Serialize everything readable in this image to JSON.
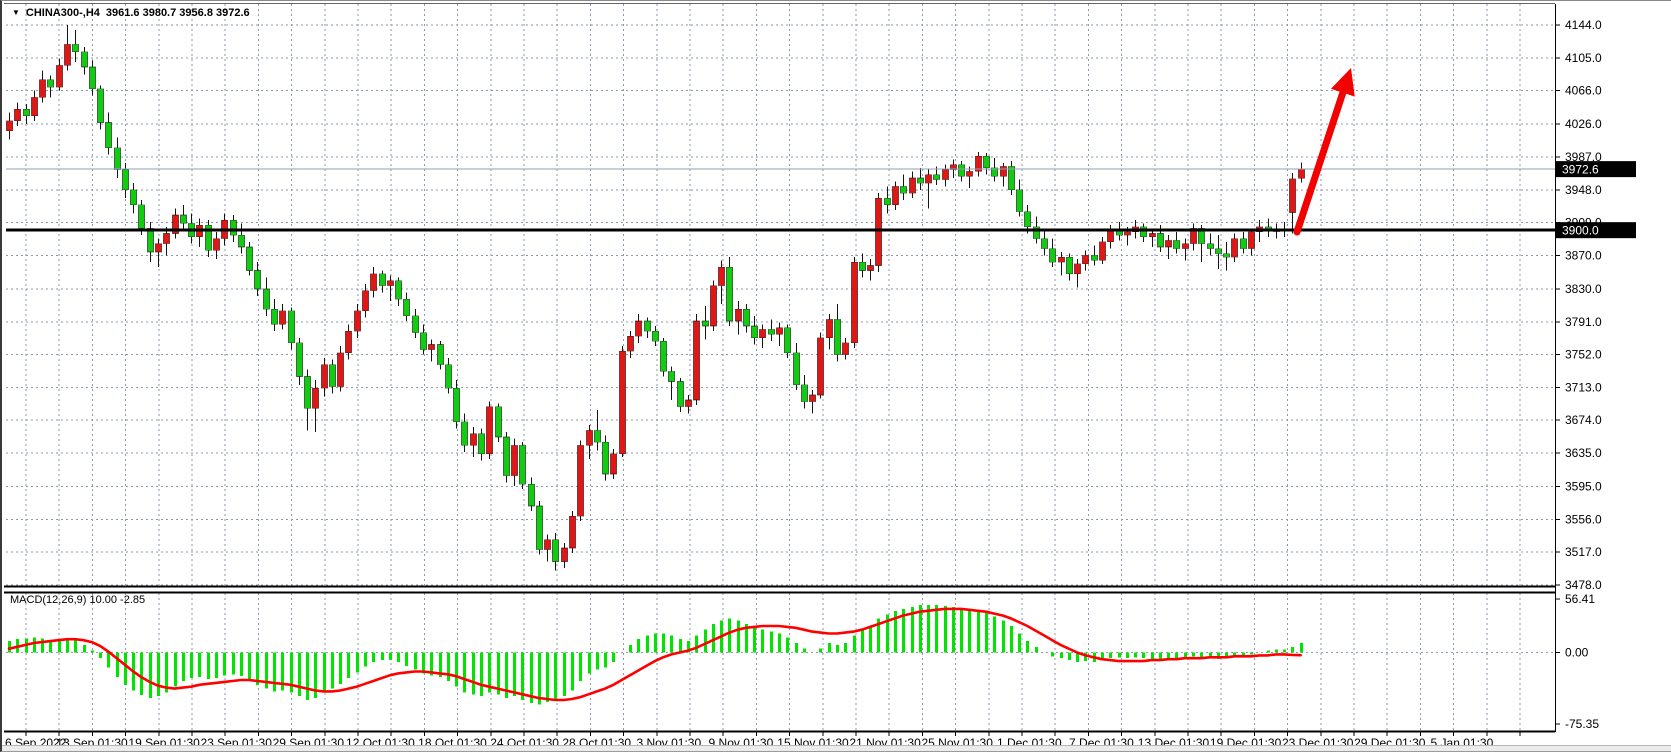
{
  "window": {
    "symbol_period": "CHINA300-,H4",
    "ohlc_display": "3961.6 3980.7 3956.8 3972.6"
  },
  "chart_data": {
    "type": "candlestick",
    "title": "CHINA300-,H4",
    "subtitle_values": {
      "open": "3961.6",
      "high": "3980.7",
      "low": "3956.8",
      "close": "3972.6"
    },
    "legend_position": "top-left",
    "grid": true,
    "price_axis": {
      "max": 4144.0,
      "min": 3478.0,
      "ticks": [
        4144.0,
        4105.0,
        4066.0,
        4026.0,
        3987.0,
        3948.0,
        3909.0,
        3870.0,
        3830.0,
        3791.0,
        3752.0,
        3713.0,
        3674.0,
        3635.0,
        3595.0,
        3556.0,
        3517.0,
        3478.0
      ],
      "current_price": 3972.6,
      "horizontal_line": 3900.0
    },
    "time_axis": {
      "labels": [
        "6 Sep 2022",
        "13 Sep 01:30",
        "19 Sep 01:30",
        "23 Sep 01:30",
        "29 Sep 01:30",
        "12 Oct 01:30",
        "18 Oct 01:30",
        "24 Oct 01:30",
        "28 Oct 01:30",
        "3 Nov 01:30",
        "9 Nov 01:30",
        "15 Nov 01:30",
        "21 Nov 01:30",
        "25 Nov 01:30",
        "1 Dec 01:30",
        "7 Dec 01:30",
        "13 Dec 01:30",
        "19 Dec 01:30",
        "23 Dec 01:30",
        "29 Dec 01:30",
        "5 Jan 01:30"
      ]
    },
    "candles_ohlc": [
      [
        4018,
        4040,
        4008,
        4030
      ],
      [
        4030,
        4052,
        4024,
        4044
      ],
      [
        4044,
        4050,
        4026,
        4036
      ],
      [
        4036,
        4066,
        4030,
        4058
      ],
      [
        4058,
        4090,
        4052,
        4079
      ],
      [
        4079,
        4084,
        4058,
        4070
      ],
      [
        4070,
        4104,
        4066,
        4096
      ],
      [
        4096,
        4144,
        4090,
        4121
      ],
      [
        4121,
        4138,
        4100,
        4112
      ],
      [
        4112,
        4118,
        4085,
        4094
      ],
      [
        4094,
        4102,
        4060,
        4068
      ],
      [
        4068,
        4072,
        4020,
        4028
      ],
      [
        4028,
        4040,
        3990,
        3998
      ],
      [
        3998,
        4010,
        3962,
        3972
      ],
      [
        3972,
        3980,
        3938,
        3948
      ],
      [
        3948,
        3956,
        3920,
        3930
      ],
      [
        3930,
        3936,
        3894,
        3902
      ],
      [
        3902,
        3910,
        3862,
        3874
      ],
      [
        3874,
        3890,
        3856,
        3884
      ],
      [
        3884,
        3904,
        3870,
        3896
      ],
      [
        3896,
        3926,
        3890,
        3918
      ],
      [
        3918,
        3930,
        3900,
        3908
      ],
      [
        3908,
        3920,
        3884,
        3892
      ],
      [
        3892,
        3914,
        3880,
        3906
      ],
      [
        3906,
        3912,
        3868,
        3876
      ],
      [
        3876,
        3898,
        3866,
        3890
      ],
      [
        3890,
        3920,
        3882,
        3912
      ],
      [
        3912,
        3918,
        3886,
        3894
      ],
      [
        3894,
        3908,
        3872,
        3880
      ],
      [
        3880,
        3886,
        3846,
        3852
      ],
      [
        3852,
        3862,
        3822,
        3830
      ],
      [
        3830,
        3844,
        3798,
        3806
      ],
      [
        3806,
        3818,
        3780,
        3788
      ],
      [
        3788,
        3812,
        3782,
        3804
      ],
      [
        3804,
        3808,
        3758,
        3766
      ],
      [
        3766,
        3772,
        3716,
        3726
      ],
      [
        3726,
        3734,
        3662,
        3688
      ],
      [
        3688,
        3722,
        3660,
        3712
      ],
      [
        3712,
        3748,
        3702,
        3740
      ],
      [
        3740,
        3746,
        3706,
        3714
      ],
      [
        3714,
        3762,
        3708,
        3754
      ],
      [
        3754,
        3788,
        3746,
        3780
      ],
      [
        3780,
        3812,
        3772,
        3804
      ],
      [
        3804,
        3836,
        3796,
        3828
      ],
      [
        3828,
        3856,
        3820,
        3848
      ],
      [
        3848,
        3852,
        3826,
        3834
      ],
      [
        3834,
        3846,
        3816,
        3840
      ],
      [
        3840,
        3844,
        3810,
        3818
      ],
      [
        3818,
        3826,
        3792,
        3798
      ],
      [
        3798,
        3806,
        3772,
        3778
      ],
      [
        3778,
        3788,
        3752,
        3758
      ],
      [
        3758,
        3770,
        3744,
        3764
      ],
      [
        3764,
        3768,
        3734,
        3740
      ],
      [
        3740,
        3748,
        3706,
        3712
      ],
      [
        3712,
        3722,
        3664,
        3672
      ],
      [
        3672,
        3682,
        3636,
        3644
      ],
      [
        3644,
        3666,
        3630,
        3658
      ],
      [
        3658,
        3664,
        3626,
        3634
      ],
      [
        3634,
        3696,
        3628,
        3690
      ],
      [
        3690,
        3694,
        3648,
        3654
      ],
      [
        3654,
        3660,
        3600,
        3608
      ],
      [
        3608,
        3652,
        3596,
        3644
      ],
      [
        3644,
        3648,
        3592,
        3598
      ],
      [
        3598,
        3606,
        3566,
        3572
      ],
      [
        3572,
        3578,
        3514,
        3520
      ],
      [
        3520,
        3538,
        3506,
        3532
      ],
      [
        3532,
        3540,
        3495,
        3506
      ],
      [
        3506,
        3528,
        3498,
        3522
      ],
      [
        3522,
        3566,
        3516,
        3560
      ],
      [
        3560,
        3650,
        3554,
        3644
      ],
      [
        3644,
        3668,
        3628,
        3662
      ],
      [
        3662,
        3686,
        3638,
        3648
      ],
      [
        3648,
        3656,
        3602,
        3610
      ],
      [
        3610,
        3640,
        3604,
        3634
      ],
      [
        3634,
        3762,
        3630,
        3756
      ],
      [
        3756,
        3780,
        3748,
        3774
      ],
      [
        3774,
        3800,
        3766,
        3792
      ],
      [
        3792,
        3796,
        3772,
        3780
      ],
      [
        3780,
        3786,
        3762,
        3768
      ],
      [
        3768,
        3772,
        3726,
        3732
      ],
      [
        3732,
        3738,
        3698,
        3720
      ],
      [
        3720,
        3724,
        3684,
        3690
      ],
      [
        3690,
        3704,
        3682,
        3698
      ],
      [
        3698,
        3800,
        3692,
        3792
      ],
      [
        3792,
        3810,
        3770,
        3786
      ],
      [
        3786,
        3840,
        3780,
        3834
      ],
      [
        3834,
        3864,
        3812,
        3856
      ],
      [
        3856,
        3868,
        3786,
        3792
      ],
      [
        3792,
        3816,
        3776,
        3806
      ],
      [
        3806,
        3812,
        3778,
        3786
      ],
      [
        3786,
        3798,
        3764,
        3772
      ],
      [
        3772,
        3788,
        3760,
        3782
      ],
      [
        3782,
        3794,
        3768,
        3776
      ],
      [
        3776,
        3790,
        3762,
        3784
      ],
      [
        3784,
        3788,
        3748,
        3754
      ],
      [
        3754,
        3766,
        3710,
        3716
      ],
      [
        3716,
        3728,
        3688,
        3696
      ],
      [
        3696,
        3710,
        3682,
        3704
      ],
      [
        3704,
        3778,
        3700,
        3772
      ],
      [
        3772,
        3800,
        3758,
        3794
      ],
      [
        3794,
        3812,
        3744,
        3752
      ],
      [
        3752,
        3772,
        3746,
        3766
      ],
      [
        3766,
        3868,
        3760,
        3862
      ],
      [
        3862,
        3872,
        3844,
        3852
      ],
      [
        3852,
        3866,
        3840,
        3858
      ],
      [
        3858,
        3944,
        3850,
        3938
      ],
      [
        3938,
        3952,
        3920,
        3930
      ],
      [
        3930,
        3958,
        3924,
        3952
      ],
      [
        3952,
        3966,
        3936,
        3944
      ],
      [
        3944,
        3970,
        3938,
        3962
      ],
      [
        3962,
        3974,
        3948,
        3956
      ],
      [
        3956,
        3972,
        3926,
        3966
      ],
      [
        3966,
        3976,
        3954,
        3960
      ],
      [
        3960,
        3978,
        3952,
        3972
      ],
      [
        3972,
        3984,
        3962,
        3978
      ],
      [
        3978,
        3982,
        3958,
        3964
      ],
      [
        3964,
        3976,
        3950,
        3970
      ],
      [
        3970,
        3993,
        3964,
        3988
      ],
      [
        3988,
        3992,
        3966,
        3974
      ],
      [
        3974,
        3986,
        3958,
        3964
      ],
      [
        3964,
        3980,
        3952,
        3976
      ],
      [
        3976,
        3982,
        3942,
        3948
      ],
      [
        3948,
        3960,
        3916,
        3922
      ],
      [
        3922,
        3930,
        3896,
        3904
      ],
      [
        3904,
        3916,
        3884,
        3890
      ],
      [
        3890,
        3902,
        3870,
        3878
      ],
      [
        3878,
        3890,
        3856,
        3862
      ],
      [
        3862,
        3874,
        3846,
        3868
      ],
      [
        3868,
        3872,
        3840,
        3848
      ],
      [
        3848,
        3866,
        3832,
        3860
      ],
      [
        3860,
        3876,
        3852,
        3870
      ],
      [
        3870,
        3882,
        3858,
        3864
      ],
      [
        3864,
        3892,
        3860,
        3886
      ],
      [
        3886,
        3906,
        3878,
        3900
      ],
      [
        3900,
        3910,
        3888,
        3894
      ],
      [
        3894,
        3904,
        3882,
        3898
      ],
      [
        3898,
        3912,
        3890,
        3904
      ],
      [
        3904,
        3908,
        3886,
        3892
      ],
      [
        3892,
        3902,
        3880,
        3896
      ],
      [
        3896,
        3906,
        3874,
        3880
      ],
      [
        3880,
        3894,
        3866,
        3888
      ],
      [
        3888,
        3898,
        3872,
        3878
      ],
      [
        3878,
        3890,
        3864,
        3884
      ],
      [
        3884,
        3908,
        3876,
        3902
      ],
      [
        3902,
        3906,
        3862,
        3884
      ],
      [
        3884,
        3896,
        3870,
        3878
      ],
      [
        3878,
        3894,
        3854,
        3872
      ],
      [
        3872,
        3886,
        3852,
        3868
      ],
      [
        3868,
        3896,
        3862,
        3890
      ],
      [
        3890,
        3898,
        3872,
        3878
      ],
      [
        3878,
        3902,
        3870,
        3898
      ],
      [
        3898,
        3912,
        3886,
        3904
      ],
      [
        3904,
        3914,
        3892,
        3900
      ],
      [
        3900,
        3908,
        3890,
        3899
      ],
      [
        3899,
        3910,
        3892,
        3901
      ],
      [
        3921,
        3968,
        3896,
        3961
      ],
      [
        3961.6,
        3980.7,
        3956.8,
        3972.6
      ]
    ],
    "macd": {
      "label": "MACD(12,26,9) 10.00 -2.85",
      "params": "12,26,9",
      "current_main": "10.00",
      "current_signal": "-2.85",
      "axis_max": 56.41,
      "axis_min": -75.35,
      "axis_zero": 0.0,
      "histogram": [
        12,
        14,
        15,
        16,
        15,
        13,
        14,
        15,
        13,
        8,
        2,
        -6,
        -16,
        -26,
        -34,
        -40,
        -45,
        -48,
        -46,
        -42,
        -36,
        -30,
        -27,
        -26,
        -28,
        -27,
        -24,
        -23,
        -25,
        -30,
        -34,
        -38,
        -41,
        -40,
        -42,
        -46,
        -50,
        -48,
        -42,
        -38,
        -33,
        -27,
        -21,
        -15,
        -10,
        -8,
        -8,
        -10,
        -14,
        -18,
        -22,
        -24,
        -26,
        -30,
        -36,
        -42,
        -44,
        -46,
        -42,
        -44,
        -48,
        -46,
        -50,
        -53,
        -55,
        -52,
        -50,
        -46,
        -40,
        -30,
        -22,
        -18,
        -16,
        -10,
        0,
        8,
        14,
        18,
        20,
        20,
        18,
        14,
        12,
        18,
        24,
        30,
        34,
        36,
        34,
        30,
        26,
        24,
        22,
        20,
        16,
        10,
        4,
        0,
        4,
        10,
        8,
        10,
        18,
        24,
        28,
        36,
        40,
        44,
        46,
        48,
        50,
        50,
        50,
        49,
        48,
        46,
        45,
        44,
        42,
        38,
        34,
        28,
        20,
        12,
        6,
        0,
        -4,
        -6,
        -8,
        -10,
        -9,
        -10,
        -8,
        -6,
        -5,
        -6,
        -5,
        -6,
        -7,
        -8,
        -7,
        -8,
        -6,
        -4,
        -5,
        -6,
        -7,
        -6,
        -4,
        -3,
        -2,
        0,
        2,
        3,
        3,
        6,
        10
      ],
      "signal": [
        4,
        6,
        8,
        10,
        11,
        12,
        13,
        14,
        14,
        13,
        11,
        7,
        1,
        -6,
        -13,
        -20,
        -26,
        -31,
        -35,
        -37,
        -38,
        -37,
        -36,
        -34,
        -33,
        -32,
        -31,
        -30,
        -29,
        -29,
        -30,
        -31,
        -32,
        -33,
        -34,
        -36,
        -38,
        -40,
        -41,
        -41,
        -40,
        -38,
        -36,
        -33,
        -30,
        -27,
        -24,
        -22,
        -21,
        -20,
        -20,
        -21,
        -22,
        -23,
        -25,
        -28,
        -31,
        -34,
        -36,
        -38,
        -40,
        -42,
        -44,
        -46,
        -48,
        -49,
        -50,
        -50,
        -49,
        -47,
        -44,
        -41,
        -38,
        -34,
        -29,
        -24,
        -19,
        -14,
        -9,
        -5,
        -2,
        0,
        2,
        5,
        9,
        13,
        17,
        21,
        24,
        26,
        27,
        28,
        28,
        28,
        27,
        26,
        24,
        22,
        21,
        20,
        20,
        21,
        22,
        24,
        27,
        30,
        33,
        36,
        39,
        41,
        43,
        44,
        45,
        46,
        46,
        46,
        45,
        44,
        43,
        41,
        39,
        36,
        32,
        28,
        23,
        18,
        13,
        8,
        4,
        0,
        -3,
        -5,
        -7,
        -8,
        -9,
        -9,
        -9,
        -9,
        -8,
        -8,
        -7,
        -7,
        -6,
        -6,
        -6,
        -5,
        -5,
        -5,
        -4,
        -4,
        -4,
        -3,
        -3,
        -2,
        -2,
        -2.5,
        -2.85
      ]
    },
    "annotations": {
      "trend_arrow": {
        "from": [
          1295,
          231
        ],
        "to": [
          1349,
          67
        ],
        "direction": "up-right"
      }
    },
    "colors": {
      "bull_body": "#e31616",
      "bear_body": "#11cc11",
      "wick": "#151515",
      "macd_hist": "#00e400",
      "macd_signal": "#ff0000",
      "grid": "#8c9aac",
      "bid_line": "#8fa0b2",
      "hline": "#000000",
      "badge_bg": "#000000",
      "badge_text": "#ffffff",
      "arrow": "#f30000",
      "axis_text": "#000000"
    }
  }
}
